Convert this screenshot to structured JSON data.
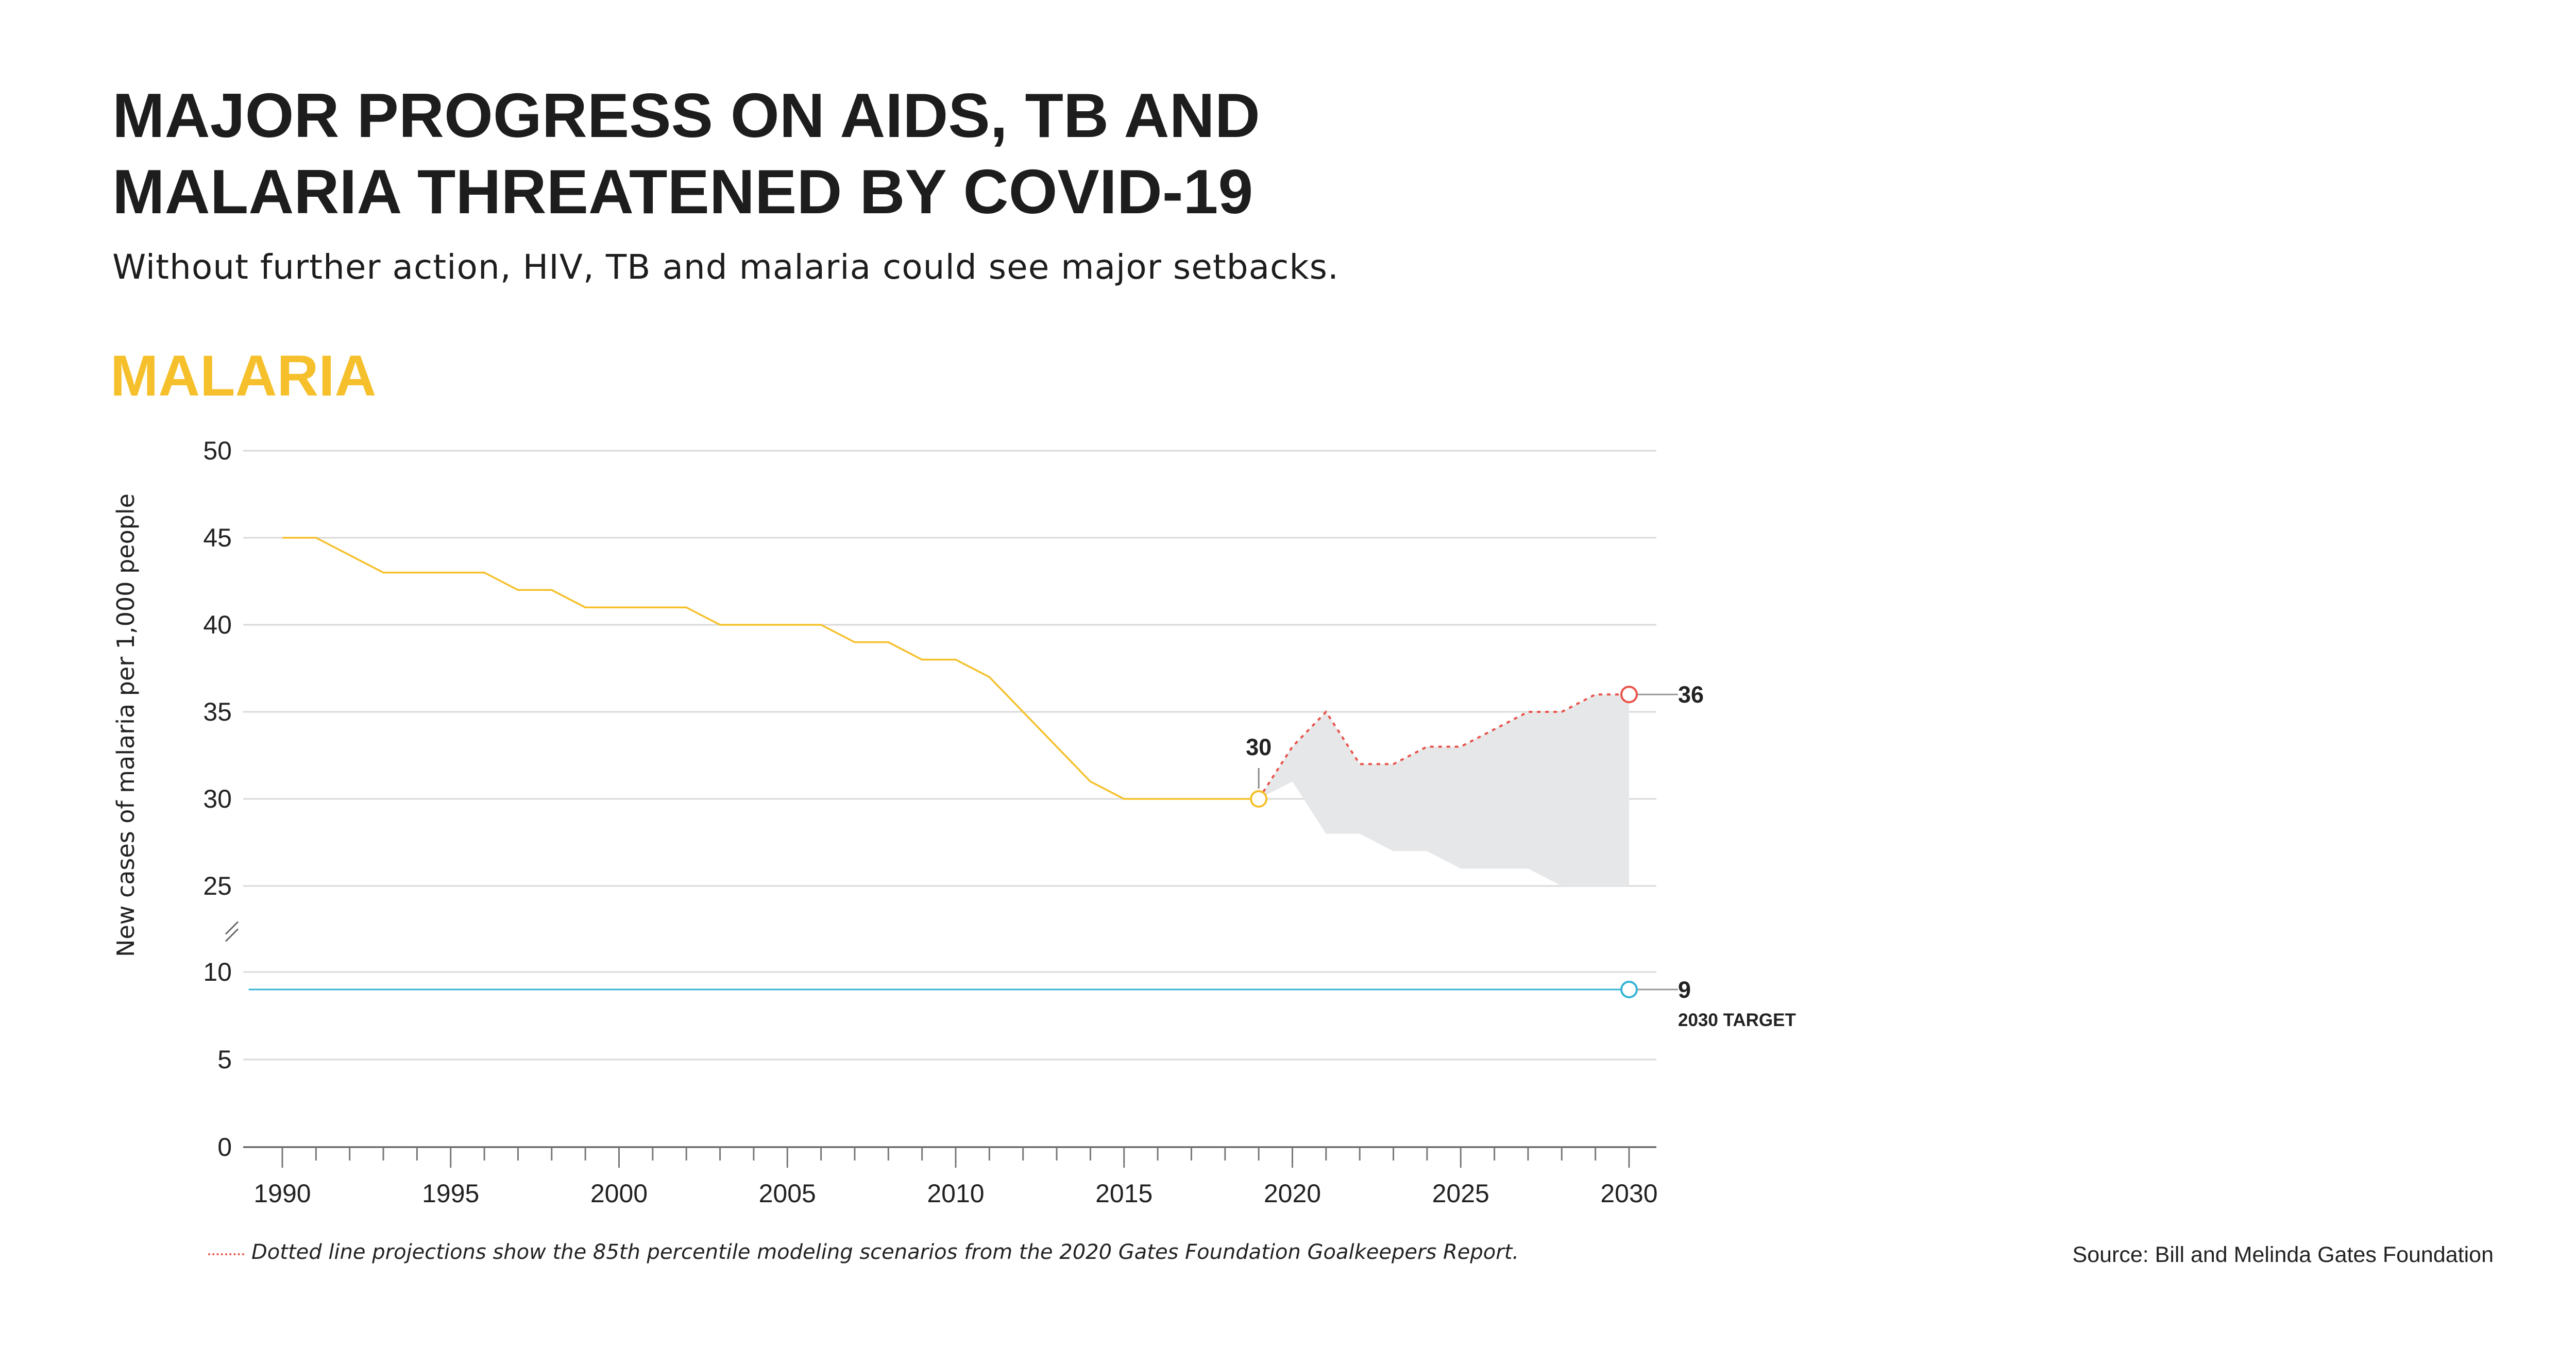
{
  "title_lines": [
    "MAJOR PROGRESS ON AIDS, TB AND",
    "MALARIA THREATENED BY COVID-19"
  ],
  "subtitle": "Without further action, HIV, TB and malaria could see major setbacks.",
  "section_label": "MALARIA",
  "note": "Dotted line projections show the 85th percentile modeling scenarios from the 2020 Gates Foundation Goalkeepers Report.",
  "source": "Source: Bill and Melinda Gates Foundation",
  "colors": {
    "historical": "#F5C02B",
    "projection": "#E8534A",
    "target": "#35B3D6",
    "band": "#E6E7E9",
    "grid": "#D9D9D9",
    "text": "#1d1d1d"
  },
  "chart_data": {
    "type": "line",
    "ylabel": "New cases of malaria per 1,000 people",
    "xlabel": "",
    "xlim": [
      1990,
      2030
    ],
    "x_ticks": [
      1990,
      1995,
      2000,
      2005,
      2010,
      2015,
      2020,
      2025,
      2030
    ],
    "y_ticks": [
      0,
      5,
      10,
      25,
      30,
      35,
      40,
      45,
      50
    ],
    "y_axis_break": [
      10,
      25
    ],
    "grid": true,
    "series": [
      {
        "style": "solid",
        "x": [
          1990,
          1991,
          1992,
          1993,
          1994,
          1995,
          1996,
          1997,
          1998,
          1999,
          2000,
          2001,
          2002,
          2003,
          2004,
          2005,
          2006,
          2007,
          2008,
          2009,
          2010,
          2011,
          2012,
          2013,
          2014,
          2015,
          2016,
          2017,
          2018,
          2019
        ],
        "y": [
          45,
          45,
          44,
          43,
          43,
          43,
          43,
          42,
          42,
          41,
          41,
          41,
          41,
          40,
          40,
          40,
          40,
          39,
          39,
          38,
          38,
          37,
          35,
          33,
          31,
          30,
          30,
          30,
          30,
          30
        ]
      },
      {
        "style": "dotted",
        "x": [
          2019,
          2020,
          2021,
          2022,
          2023,
          2024,
          2025,
          2026,
          2027,
          2028,
          2029,
          2030
        ],
        "y": [
          30,
          33,
          35,
          32,
          32,
          33,
          33,
          34,
          35,
          35,
          36,
          36
        ]
      },
      {
        "style": "solid",
        "x": [
          1989,
          2030
        ],
        "y": [
          9,
          9
        ]
      }
    ],
    "band": {
      "x": [
        2019,
        2020,
        2021,
        2022,
        2023,
        2024,
        2025,
        2026,
        2027,
        2028,
        2029,
        2030
      ],
      "upper": [
        30,
        33,
        35,
        32,
        32,
        33,
        33,
        34,
        35,
        35,
        36,
        36
      ],
      "lower": [
        30,
        31,
        28,
        28,
        27,
        27,
        26,
        26,
        26,
        25,
        25,
        25
      ]
    },
    "annotations": [
      {
        "text": "30",
        "x": 2019,
        "y": 30
      },
      {
        "text": "36",
        "x": 2030,
        "y": 36
      },
      {
        "text": "9",
        "x": 2030,
        "y": 9
      },
      {
        "text": "2030 TARGET",
        "x": 2030,
        "y": 9
      }
    ]
  }
}
